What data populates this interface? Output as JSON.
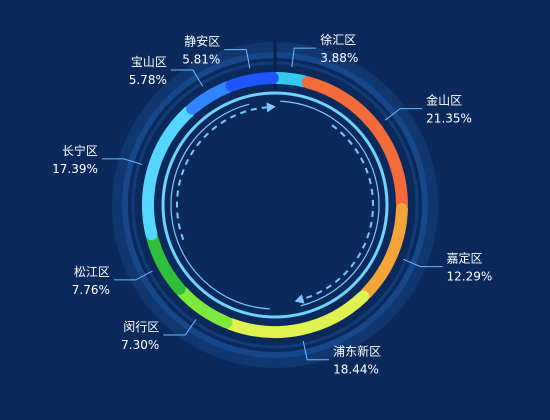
{
  "chart_data": {
    "type": "pie",
    "variant": "ring",
    "legend": "none",
    "series": [
      {
        "name": "徐汇区",
        "percent_label": "3.88%",
        "value": 3.88,
        "color": "#35c9f1"
      },
      {
        "name": "金山区",
        "percent_label": "21.35%",
        "value": 21.35,
        "color": "#f36b3b"
      },
      {
        "name": "嘉定区",
        "percent_label": "12.29%",
        "value": 12.29,
        "color": "#f3a53a"
      },
      {
        "name": "浦东新区",
        "percent_label": "18.44%",
        "value": 18.44,
        "color": "#dff24f"
      },
      {
        "name": "闵行区",
        "percent_label": "7.30%",
        "value": 7.3,
        "color": "#7ee83c"
      },
      {
        "name": "松江区",
        "percent_label": "7.76%",
        "value": 7.76,
        "color": "#2fbf3a"
      },
      {
        "name": "长宁区",
        "percent_label": "17.39%",
        "value": 17.39,
        "color": "#54d6ff"
      },
      {
        "name": "宝山区",
        "percent_label": "5.78%",
        "value": 5.78,
        "color": "#2f86ff"
      },
      {
        "name": "静安区",
        "percent_label": "5.81%",
        "value": 5.81,
        "color": "#1f55ff"
      }
    ]
  },
  "colors": {
    "background": "#0b2a5b",
    "outer_glow": "#1f5fb0",
    "inner_ring": "#6fd2ff",
    "dash_arrow": "#7fc6ff",
    "label_line": "#6fb8ff"
  }
}
